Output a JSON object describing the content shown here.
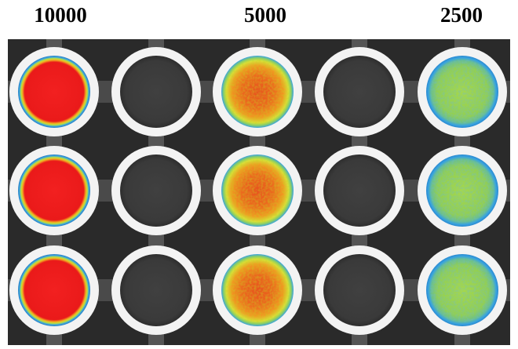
{
  "column_labels": [
    "10000",
    "5000",
    "2500"
  ],
  "colors": {
    "plate_background": "#2a2a2a",
    "well_ring": "#f3f3f3",
    "empty_well": "#3c3c3c",
    "signal_high": "#ee1c1c",
    "signal_mid": "#f3a21e",
    "signal_low": "#9bd24a",
    "halo": "#39a3e0"
  },
  "wells": [
    {
      "row": 1,
      "col": 1,
      "state": "signal",
      "level": "high"
    },
    {
      "row": 1,
      "col": 2,
      "state": "empty"
    },
    {
      "row": 1,
      "col": 3,
      "state": "signal",
      "level": "mid"
    },
    {
      "row": 1,
      "col": 4,
      "state": "empty"
    },
    {
      "row": 1,
      "col": 5,
      "state": "signal",
      "level": "low"
    },
    {
      "row": 2,
      "col": 1,
      "state": "signal",
      "level": "high"
    },
    {
      "row": 2,
      "col": 2,
      "state": "empty"
    },
    {
      "row": 2,
      "col": 3,
      "state": "signal",
      "level": "mid"
    },
    {
      "row": 2,
      "col": 4,
      "state": "empty"
    },
    {
      "row": 2,
      "col": 5,
      "state": "signal",
      "level": "low"
    },
    {
      "row": 3,
      "col": 1,
      "state": "signal",
      "level": "high"
    },
    {
      "row": 3,
      "col": 2,
      "state": "empty"
    },
    {
      "row": 3,
      "col": 3,
      "state": "signal",
      "level": "mid"
    },
    {
      "row": 3,
      "col": 4,
      "state": "empty"
    },
    {
      "row": 3,
      "col": 5,
      "state": "signal",
      "level": "low"
    }
  ]
}
